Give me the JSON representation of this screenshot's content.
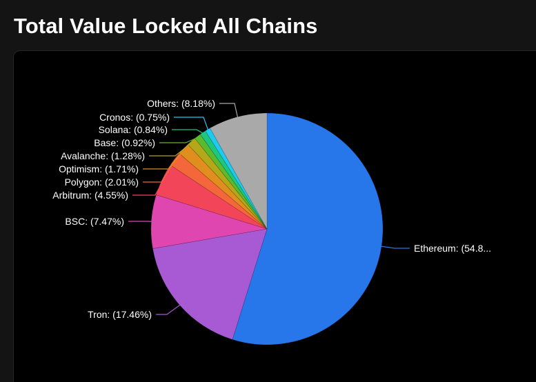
{
  "page": {
    "title": "Total Value Locked All Chains"
  },
  "chart_data": {
    "type": "pie",
    "title": "Total Value Locked All Chains",
    "unit": "%",
    "start_angle": "12 o'clock, clockwise",
    "slices": [
      {
        "label": "Ethereum: (54.8...",
        "name": "Ethereum",
        "value": 54.8,
        "color": "#2776ea"
      },
      {
        "label": "Tron: (17.46%)",
        "name": "Tron",
        "value": 17.46,
        "color": "#a85ad4"
      },
      {
        "label": "BSC: (7.47%)",
        "name": "BSC",
        "value": 7.47,
        "color": "#df46b0"
      },
      {
        "label": "Arbitrum: (4.55%)",
        "name": "Arbitrum",
        "value": 4.55,
        "color": "#f2455a"
      },
      {
        "label": "Polygon: (2.01%)",
        "name": "Polygon",
        "value": 2.01,
        "color": "#f4673a"
      },
      {
        "label": "Optimism: (1.71%)",
        "name": "Optimism",
        "value": 1.71,
        "color": "#e08e1e"
      },
      {
        "label": "Avalanche: (1.28%)",
        "name": "Avalanche",
        "value": 1.28,
        "color": "#b3a71a"
      },
      {
        "label": "Base: (0.92%)",
        "name": "Base",
        "value": 0.92,
        "color": "#5cba2e"
      },
      {
        "label": "Solana: (0.84%)",
        "name": "Solana",
        "value": 0.84,
        "color": "#1ec77f"
      },
      {
        "label": "Cronos: (0.75%)",
        "name": "Cronos",
        "value": 0.75,
        "color": "#1fc9f0"
      },
      {
        "label": "Others: (8.18%)",
        "name": "Others",
        "value": 8.18,
        "color": "#a9a9a9"
      }
    ]
  }
}
